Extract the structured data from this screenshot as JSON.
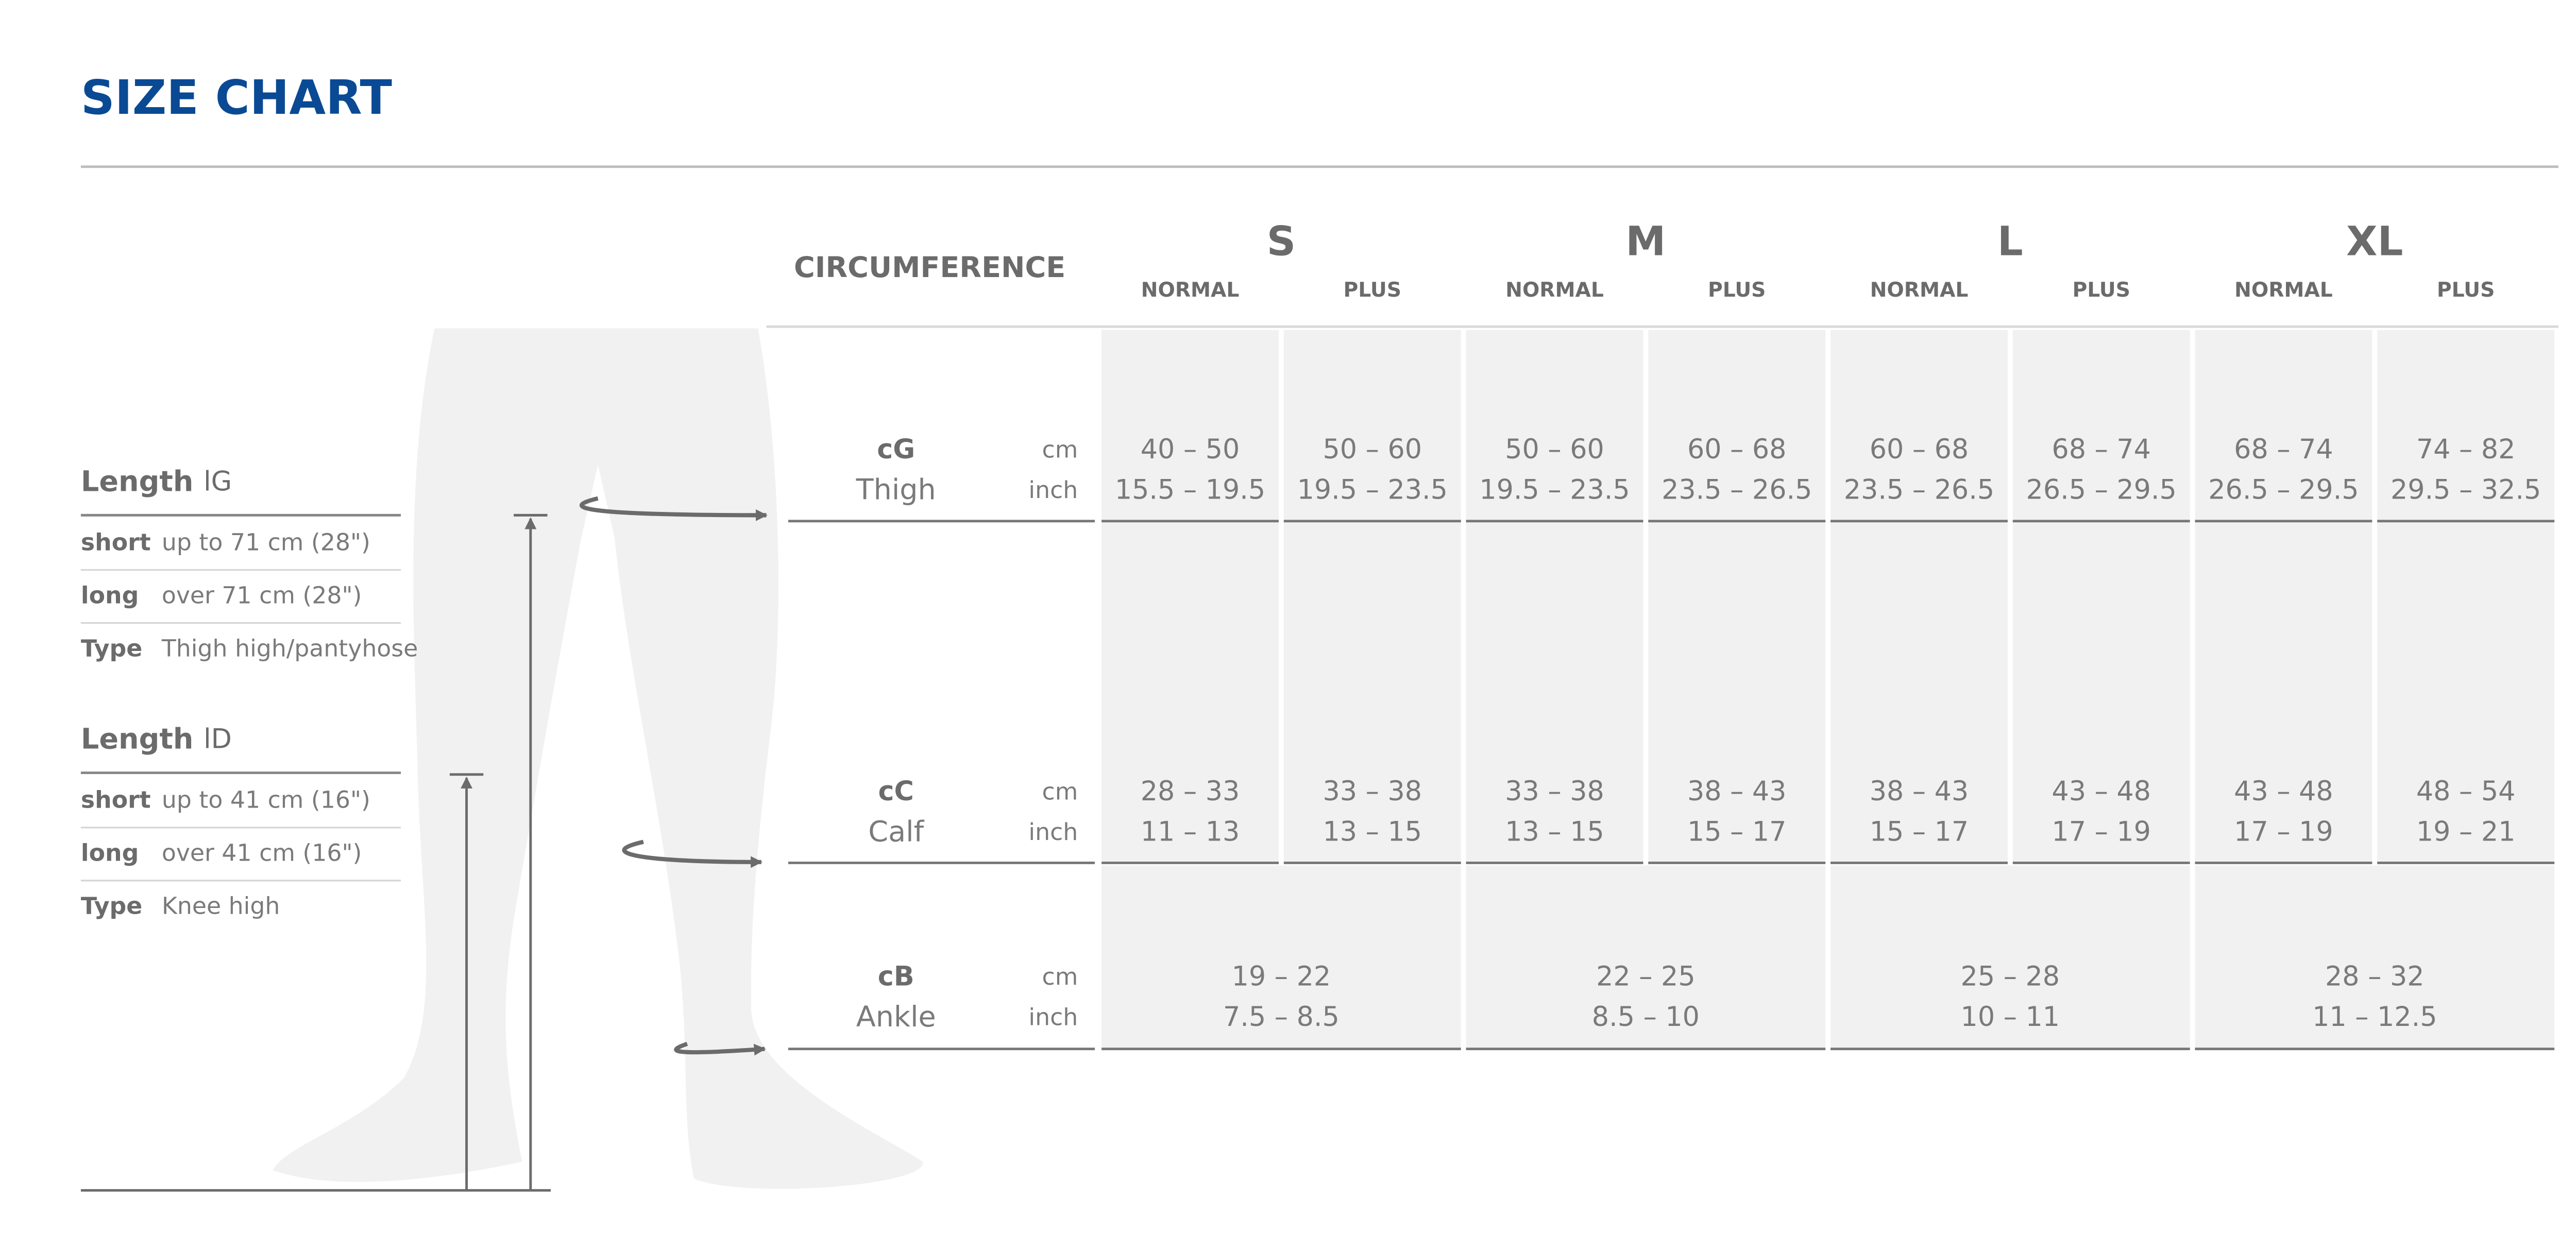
{
  "title": "SIZE CHART",
  "length_tables": [
    {
      "heading": "Length",
      "symbol": "lG",
      "rows": [
        {
          "key": "short",
          "value": "up to 71 cm (28\")"
        },
        {
          "key": "long",
          "value": "over 71 cm (28\")"
        },
        {
          "key": "Type",
          "value": "Thigh high/pantyhose"
        }
      ]
    },
    {
      "heading": "Length",
      "symbol": "lD",
      "rows": [
        {
          "key": "short",
          "value": "up to 41 cm (16\")"
        },
        {
          "key": "long",
          "value": "over 41 cm (16\")"
        },
        {
          "key": "Type",
          "value": "Knee high"
        }
      ]
    }
  ],
  "table": {
    "circumference": "CIRCUMFERENCE",
    "sizes": [
      {
        "name": "S",
        "variants": [
          "NORMAL",
          "PLUS"
        ]
      },
      {
        "name": "M",
        "variants": [
          "NORMAL",
          "PLUS"
        ]
      },
      {
        "name": "L",
        "variants": [
          "NORMAL",
          "PLUS"
        ]
      },
      {
        "name": "XL",
        "variants": [
          "NORMAL",
          "PLUS"
        ]
      }
    ],
    "rows": [
      {
        "code": "cG",
        "name": "Thigh",
        "units": [
          "cm",
          "inch"
        ],
        "values": [
          [
            "40 – 50",
            "15.5 – 19.5"
          ],
          [
            "50 – 60",
            "19.5 – 23.5"
          ],
          [
            "50 – 60",
            "19.5 – 23.5"
          ],
          [
            "60 – 68",
            "23.5 – 26.5"
          ],
          [
            "60 – 68",
            "23.5 – 26.5"
          ],
          [
            "68 – 74",
            "26.5 – 29.5"
          ],
          [
            "68 – 74",
            "26.5 – 29.5"
          ],
          [
            "74 – 82",
            "29.5 – 32.5"
          ]
        ]
      },
      {
        "code": "cC",
        "name": "Calf",
        "units": [
          "cm",
          "inch"
        ],
        "values": [
          [
            "28 – 33",
            "11 – 13"
          ],
          [
            "33 – 38",
            "13 – 15"
          ],
          [
            "33 – 38",
            "13 – 15"
          ],
          [
            "38 – 43",
            "15 – 17"
          ],
          [
            "38 – 43",
            "15 – 17"
          ],
          [
            "43 – 48",
            "17 – 19"
          ],
          [
            "43 – 48",
            "17 – 19"
          ],
          [
            "48 – 54",
            "19 – 21"
          ]
        ]
      },
      {
        "code": "cB",
        "name": "Ankle",
        "units": [
          "cm",
          "inch"
        ],
        "values": [
          [
            "19 – 22",
            "7.5 – 8.5"
          ],
          [
            "22 – 25",
            "8.5 – 10"
          ],
          [
            "25 – 28",
            "10 – 11"
          ],
          [
            "28 – 32",
            "11 – 12.5"
          ]
        ]
      }
    ]
  }
}
